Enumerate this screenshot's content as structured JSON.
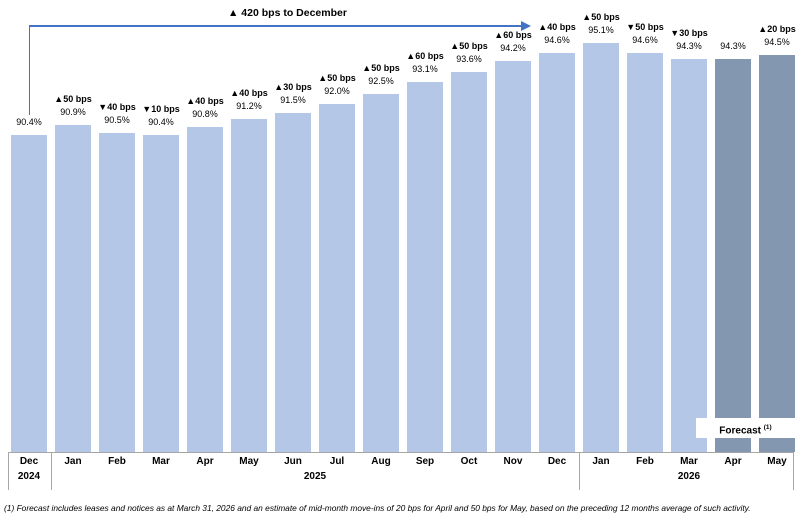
{
  "chart_data": {
    "type": "bar",
    "unit": "%",
    "y_axis_visible": false,
    "grid": false,
    "categories": [
      "Dec",
      "Jan",
      "Feb",
      "Mar",
      "Apr",
      "May",
      "Jun",
      "Jul",
      "Aug",
      "Sep",
      "Oct",
      "Nov",
      "Dec",
      "Jan",
      "Feb",
      "Mar",
      "Apr",
      "May"
    ],
    "values": [
      90.4,
      90.9,
      90.5,
      90.4,
      90.8,
      91.2,
      91.5,
      92.0,
      92.5,
      93.1,
      93.6,
      94.2,
      94.6,
      95.1,
      94.6,
      94.3,
      94.3,
      94.5
    ],
    "bars": [
      {
        "month": "Dec",
        "year": "2024",
        "value": 90.4,
        "value_label": "90.4%",
        "change_label": null,
        "forecast": false
      },
      {
        "month": "Jan",
        "year": "2025",
        "value": 90.9,
        "value_label": "90.9%",
        "change_label": "▲50 bps",
        "forecast": false
      },
      {
        "month": "Feb",
        "year": "2025",
        "value": 90.5,
        "value_label": "90.5%",
        "change_label": "▼40 bps",
        "forecast": false
      },
      {
        "month": "Mar",
        "year": "2025",
        "value": 90.4,
        "value_label": "90.4%",
        "change_label": "▼10 bps",
        "forecast": false
      },
      {
        "month": "Apr",
        "year": "2025",
        "value": 90.8,
        "value_label": "90.8%",
        "change_label": "▲40 bps",
        "forecast": false
      },
      {
        "month": "May",
        "year": "2025",
        "value": 91.2,
        "value_label": "91.2%",
        "change_label": "▲40 bps",
        "forecast": false
      },
      {
        "month": "Jun",
        "year": "2025",
        "value": 91.5,
        "value_label": "91.5%",
        "change_label": "▲30 bps",
        "forecast": false
      },
      {
        "month": "Jul",
        "year": "2025",
        "value": 92.0,
        "value_label": "92.0%",
        "change_label": "▲50 bps",
        "forecast": false
      },
      {
        "month": "Aug",
        "year": "2025",
        "value": 92.5,
        "value_label": "92.5%",
        "change_label": "▲50 bps",
        "forecast": false
      },
      {
        "month": "Sep",
        "year": "2025",
        "value": 93.1,
        "value_label": "93.1%",
        "change_label": "▲60 bps",
        "forecast": false
      },
      {
        "month": "Oct",
        "year": "2025",
        "value": 93.6,
        "value_label": "93.6%",
        "change_label": "▲50 bps",
        "forecast": false
      },
      {
        "month": "Nov",
        "year": "2025",
        "value": 94.2,
        "value_label": "94.2%",
        "change_label": "▲60 bps",
        "forecast": false
      },
      {
        "month": "Dec",
        "year": "2025",
        "value": 94.6,
        "value_label": "94.6%",
        "change_label": "▲40 bps",
        "forecast": false
      },
      {
        "month": "Jan",
        "year": "2026",
        "value": 95.1,
        "value_label": "95.1%",
        "change_label": "▲50 bps",
        "forecast": false
      },
      {
        "month": "Feb",
        "year": "2026",
        "value": 94.6,
        "value_label": "94.6%",
        "change_label": "▼50 bps",
        "forecast": false
      },
      {
        "month": "Mar",
        "year": "2026",
        "value": 94.3,
        "value_label": "94.3%",
        "change_label": "▼30 bps",
        "forecast": false
      },
      {
        "month": "Apr",
        "year": "2026",
        "value": 94.3,
        "value_label": "94.3%",
        "change_label": null,
        "forecast": true
      },
      {
        "month": "May",
        "year": "2026",
        "value": 94.5,
        "value_label": "94.5%",
        "change_label": "▲20 bps",
        "forecast": true
      }
    ],
    "year_groups": [
      {
        "label": "2024",
        "from_index": 0,
        "to_index": 0
      },
      {
        "label": "2025",
        "from_index": 1,
        "to_index": 12
      },
      {
        "label": "2026",
        "from_index": 13,
        "to_index": 17
      }
    ],
    "annotation": {
      "label": "▲ 420 bps to December",
      "from_month_index": 0,
      "to_month_index": 12
    },
    "forecast_label": {
      "text": "Forecast",
      "superscript": "(1)"
    },
    "footnote": "(1) Forecast includes leases and notices as at March 31, 2026 and an estimate of mid-month move-ins of 20 bps for April and 50 bps for May, based on the preceding 12 months average of such activity.",
    "colors": {
      "bar": "#B4C7E7",
      "bar_forecast": "#8497B0",
      "arrow": "#4472C4",
      "axis_line": "#A6A6A6",
      "text": "#000000"
    }
  }
}
